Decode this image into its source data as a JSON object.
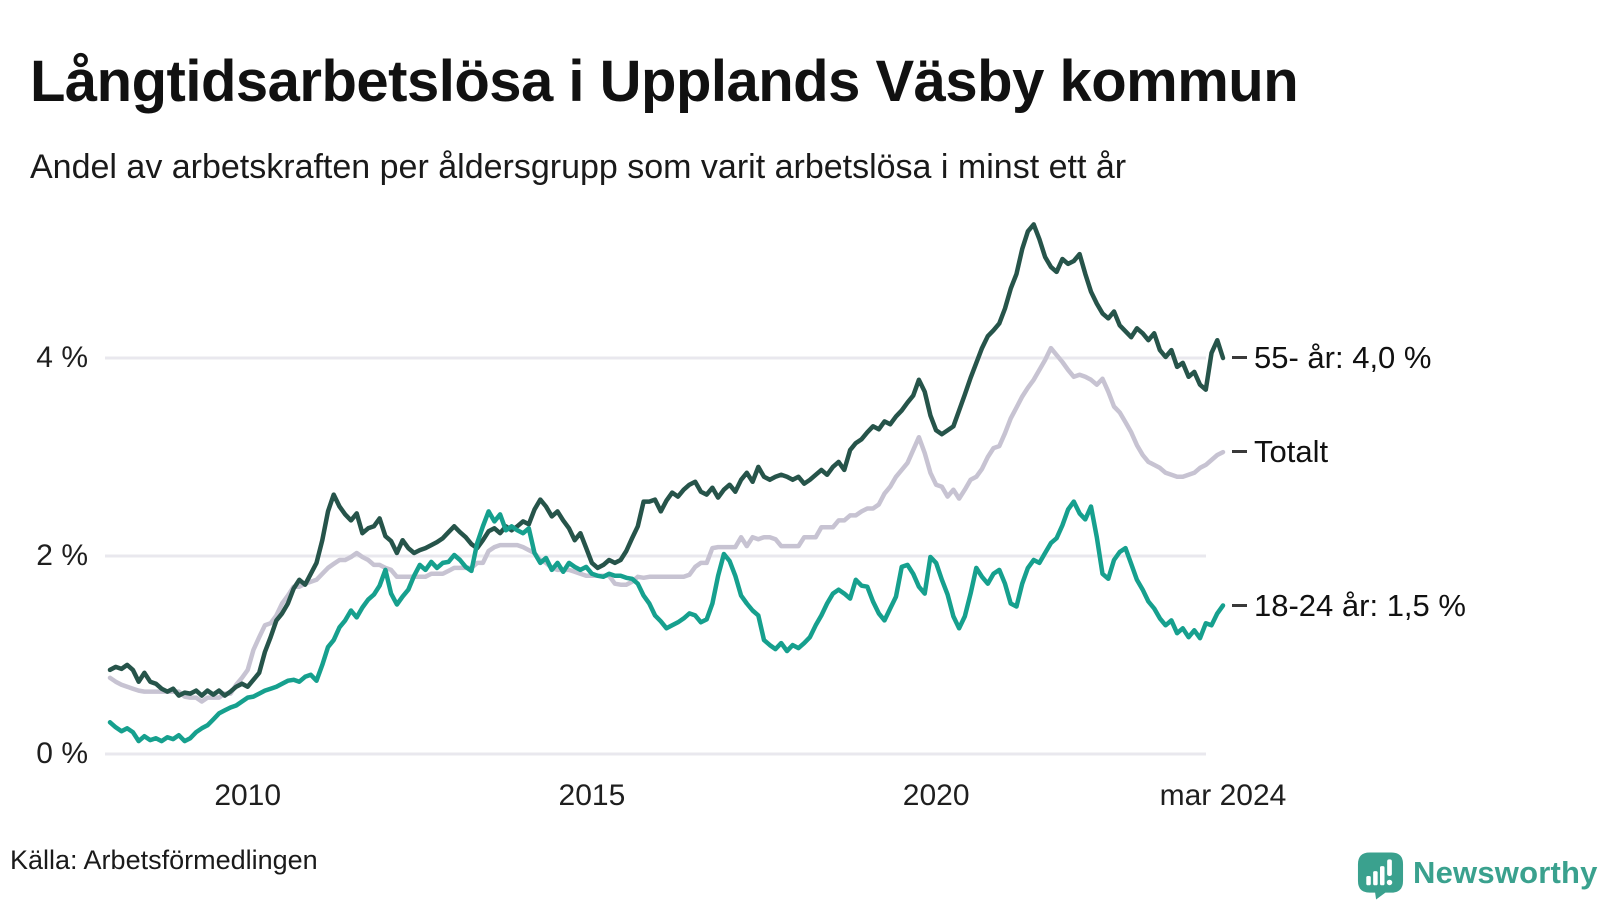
{
  "chart_data": {
    "type": "line",
    "title": "Långtidsarbetslösa i Upplands Väsby kommun",
    "subtitle": "Andel av arbetskraften per åldersgrupp som varit arbetslösa i minst ett år",
    "unit": "%",
    "x_start_year": 2008.0,
    "points_per_year": 12,
    "x_end_year": 2024.1667,
    "ylim": [
      0,
      5.6
    ],
    "grid": true,
    "legend_position": "right-end-labels",
    "x_ticks": [
      {
        "year": 2010,
        "label": "2010"
      },
      {
        "year": 2015,
        "label": "2015"
      },
      {
        "year": 2020,
        "label": "2020"
      },
      {
        "year": 2024.1667,
        "label": "mar 2024"
      }
    ],
    "y_ticks": [
      {
        "value": 0,
        "label": "0 %"
      },
      {
        "value": 2,
        "label": "2 %"
      },
      {
        "value": 4,
        "label": "4 %"
      }
    ],
    "series": [
      {
        "name": "Totalt",
        "end_label": "Totalt",
        "end_value": 3.05,
        "color": "#c7c3d2",
        "values": [
          0.77,
          0.73,
          0.7,
          0.68,
          0.66,
          0.64,
          0.63,
          0.63,
          0.63,
          0.63,
          0.63,
          0.63,
          0.63,
          0.58,
          0.57,
          0.57,
          0.53,
          0.57,
          0.57,
          0.57,
          0.61,
          0.61,
          0.7,
          0.77,
          0.85,
          1.05,
          1.18,
          1.3,
          1.32,
          1.4,
          1.52,
          1.6,
          1.69,
          1.69,
          1.72,
          1.74,
          1.76,
          1.82,
          1.88,
          1.92,
          1.96,
          1.96,
          1.99,
          2.03,
          1.99,
          1.96,
          1.91,
          1.91,
          1.88,
          1.86,
          1.79,
          1.79,
          1.79,
          1.79,
          1.79,
          1.79,
          1.82,
          1.82,
          1.82,
          1.85,
          1.88,
          1.88,
          1.88,
          1.88,
          1.93,
          1.93,
          2.05,
          2.09,
          2.11,
          2.11,
          2.11,
          2.11,
          2.09,
          2.06,
          2.03,
          1.96,
          1.93,
          1.88,
          1.86,
          1.86,
          1.86,
          1.84,
          1.82,
          1.8,
          1.8,
          1.8,
          1.8,
          1.8,
          1.72,
          1.71,
          1.71,
          1.74,
          1.79,
          1.78,
          1.79,
          1.79,
          1.79,
          1.79,
          1.79,
          1.79,
          1.79,
          1.81,
          1.89,
          1.93,
          1.93,
          2.08,
          2.09,
          2.09,
          2.09,
          2.09,
          2.19,
          2.1,
          2.19,
          2.17,
          2.19,
          2.19,
          2.17,
          2.1,
          2.1,
          2.1,
          2.1,
          2.19,
          2.19,
          2.19,
          2.29,
          2.29,
          2.29,
          2.36,
          2.36,
          2.41,
          2.41,
          2.45,
          2.48,
          2.48,
          2.52,
          2.63,
          2.7,
          2.8,
          2.87,
          2.94,
          3.07,
          3.2,
          3.04,
          2.84,
          2.72,
          2.7,
          2.6,
          2.67,
          2.58,
          2.67,
          2.77,
          2.8,
          2.88,
          3.0,
          3.09,
          3.11,
          3.24,
          3.39,
          3.5,
          3.61,
          3.7,
          3.78,
          3.88,
          3.98,
          4.1,
          4.03,
          3.96,
          3.88,
          3.81,
          3.83,
          3.81,
          3.78,
          3.73,
          3.79,
          3.66,
          3.51,
          3.45,
          3.35,
          3.25,
          3.12,
          3.02,
          2.95,
          2.92,
          2.89,
          2.84,
          2.82,
          2.8,
          2.8,
          2.82,
          2.84,
          2.89,
          2.92,
          2.97,
          3.02,
          3.05
        ]
      },
      {
        "name": "55- år",
        "end_label": "55- år: 4,0 %",
        "end_value": 4.0,
        "color": "#26544a",
        "values": [
          0.85,
          0.88,
          0.86,
          0.9,
          0.85,
          0.73,
          0.82,
          0.73,
          0.71,
          0.66,
          0.63,
          0.66,
          0.59,
          0.62,
          0.61,
          0.64,
          0.59,
          0.64,
          0.6,
          0.64,
          0.59,
          0.63,
          0.68,
          0.71,
          0.68,
          0.75,
          0.82,
          1.03,
          1.18,
          1.35,
          1.42,
          1.52,
          1.67,
          1.76,
          1.71,
          1.82,
          1.93,
          2.16,
          2.45,
          2.62,
          2.5,
          2.42,
          2.36,
          2.43,
          2.23,
          2.28,
          2.3,
          2.38,
          2.2,
          2.15,
          2.03,
          2.16,
          2.08,
          2.03,
          2.06,
          2.08,
          2.11,
          2.14,
          2.18,
          2.24,
          2.3,
          2.24,
          2.19,
          2.12,
          2.08,
          2.16,
          2.25,
          2.28,
          2.23,
          2.3,
          2.26,
          2.3,
          2.35,
          2.32,
          2.47,
          2.57,
          2.5,
          2.4,
          2.45,
          2.36,
          2.28,
          2.16,
          2.23,
          2.08,
          1.93,
          1.88,
          1.91,
          1.96,
          1.93,
          1.96,
          2.05,
          2.18,
          2.3,
          2.55,
          2.55,
          2.57,
          2.45,
          2.56,
          2.64,
          2.6,
          2.67,
          2.72,
          2.75,
          2.65,
          2.62,
          2.69,
          2.59,
          2.67,
          2.72,
          2.65,
          2.77,
          2.84,
          2.75,
          2.9,
          2.8,
          2.77,
          2.8,
          2.82,
          2.8,
          2.77,
          2.8,
          2.73,
          2.77,
          2.82,
          2.87,
          2.82,
          2.9,
          2.95,
          2.87,
          3.07,
          3.14,
          3.18,
          3.25,
          3.31,
          3.28,
          3.36,
          3.33,
          3.41,
          3.47,
          3.55,
          3.62,
          3.78,
          3.66,
          3.42,
          3.27,
          3.23,
          3.27,
          3.31,
          3.47,
          3.63,
          3.8,
          3.95,
          4.1,
          4.22,
          4.28,
          4.35,
          4.5,
          4.7,
          4.85,
          5.1,
          5.28,
          5.35,
          5.2,
          5.02,
          4.92,
          4.87,
          5.0,
          4.95,
          4.98,
          5.05,
          4.85,
          4.67,
          4.55,
          4.45,
          4.4,
          4.47,
          4.33,
          4.27,
          4.21,
          4.3,
          4.25,
          4.18,
          4.25,
          4.08,
          4.01,
          4.08,
          3.91,
          3.95,
          3.81,
          3.86,
          3.73,
          3.68,
          4.05,
          4.18,
          4.0
        ]
      },
      {
        "name": "18-24 år",
        "end_label": "18-24 år: 1,5 %",
        "end_value": 1.5,
        "color": "#16a08e",
        "values": [
          0.32,
          0.27,
          0.23,
          0.26,
          0.22,
          0.13,
          0.18,
          0.14,
          0.16,
          0.13,
          0.17,
          0.15,
          0.19,
          0.13,
          0.16,
          0.22,
          0.26,
          0.29,
          0.35,
          0.41,
          0.44,
          0.47,
          0.49,
          0.53,
          0.57,
          0.58,
          0.61,
          0.64,
          0.66,
          0.68,
          0.71,
          0.74,
          0.75,
          0.73,
          0.78,
          0.8,
          0.74,
          0.9,
          1.08,
          1.15,
          1.28,
          1.35,
          1.45,
          1.38,
          1.48,
          1.56,
          1.61,
          1.7,
          1.86,
          1.62,
          1.51,
          1.59,
          1.66,
          1.8,
          1.91,
          1.86,
          1.94,
          1.88,
          1.93,
          1.94,
          2.01,
          1.96,
          1.89,
          1.85,
          2.13,
          2.3,
          2.45,
          2.35,
          2.42,
          2.26,
          2.3,
          2.26,
          2.23,
          2.28,
          2.03,
          1.93,
          1.98,
          1.86,
          1.93,
          1.84,
          1.93,
          1.89,
          1.86,
          1.89,
          1.82,
          1.8,
          1.79,
          1.82,
          1.8,
          1.8,
          1.78,
          1.77,
          1.72,
          1.6,
          1.52,
          1.4,
          1.34,
          1.27,
          1.3,
          1.33,
          1.37,
          1.42,
          1.4,
          1.33,
          1.36,
          1.52,
          1.8,
          2.02,
          1.95,
          1.8,
          1.6,
          1.52,
          1.45,
          1.4,
          1.15,
          1.1,
          1.06,
          1.12,
          1.04,
          1.1,
          1.07,
          1.12,
          1.18,
          1.3,
          1.4,
          1.52,
          1.62,
          1.66,
          1.62,
          1.57,
          1.76,
          1.7,
          1.69,
          1.54,
          1.42,
          1.35,
          1.47,
          1.59,
          1.89,
          1.91,
          1.82,
          1.69,
          1.62,
          1.99,
          1.93,
          1.76,
          1.61,
          1.39,
          1.27,
          1.39,
          1.62,
          1.88,
          1.79,
          1.72,
          1.82,
          1.86,
          1.72,
          1.52,
          1.49,
          1.72,
          1.88,
          1.96,
          1.93,
          2.03,
          2.13,
          2.18,
          2.31,
          2.47,
          2.55,
          2.43,
          2.37,
          2.5,
          2.19,
          1.82,
          1.77,
          1.96,
          2.04,
          2.08,
          1.92,
          1.76,
          1.66,
          1.54,
          1.47,
          1.37,
          1.3,
          1.35,
          1.22,
          1.27,
          1.18,
          1.25,
          1.17,
          1.32,
          1.3,
          1.42,
          1.5
        ]
      }
    ]
  },
  "footer": {
    "source": "Källa: Arbetsförmedlingen",
    "brand": "Newsworthy",
    "brand_color": "#3aa18e",
    "brand_icon": "speech-bubble-bar-chart-icon"
  },
  "colors": {
    "background": "#ffffff",
    "grid": "#e9e8ee",
    "title_text": "#111111",
    "axis_text": "#1f1f1f",
    "label_dash": "#3a3a3a"
  }
}
